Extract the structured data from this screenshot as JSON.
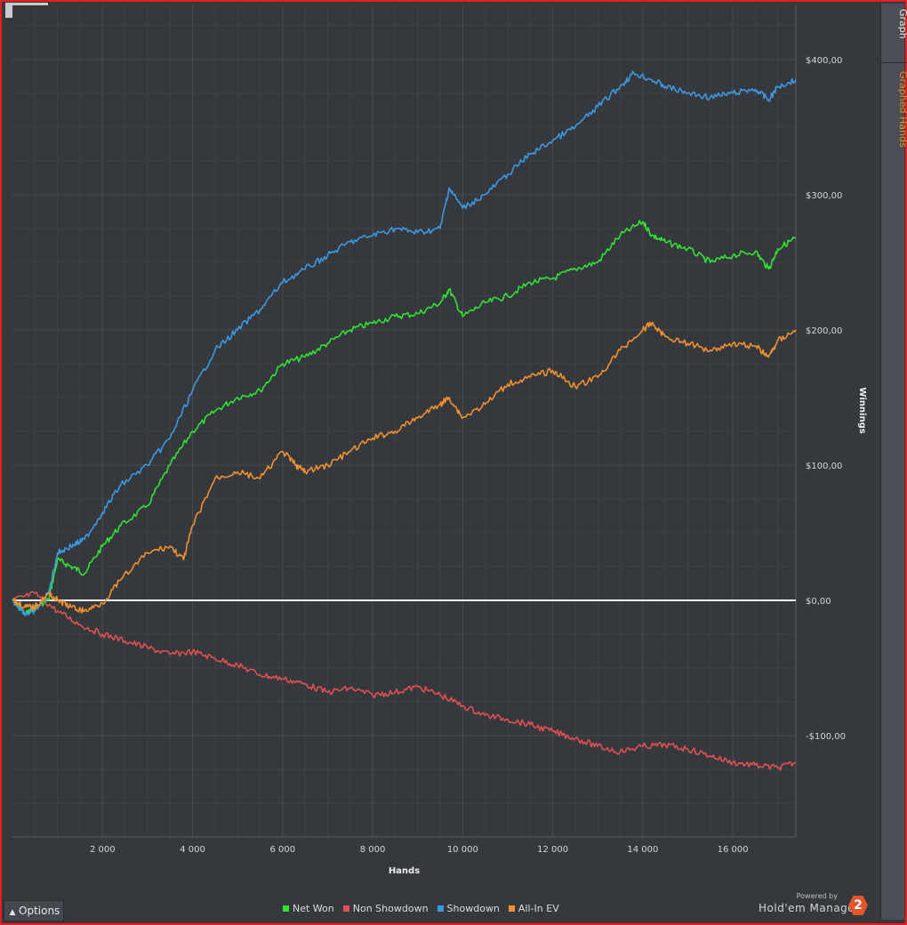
{
  "side_panel": {
    "tab_graph": "Graph",
    "tab_graphed_hands": "Graphed Hands"
  },
  "options_button": {
    "label": "Options"
  },
  "branding": {
    "powered_by": "Powered by",
    "name": "Hold'em Manager",
    "badge": "2"
  },
  "colors": {
    "background": "#35383d",
    "grid": "#4a4d53",
    "net_won": "#33e033",
    "non_showdown": "#e05050",
    "showdown": "#3d98e0",
    "all_in_ev": "#f0902e",
    "accent": "#f08a1c"
  },
  "chart_data": {
    "type": "line",
    "title": "",
    "xlabel": "Hands",
    "ylabel": "Winnings",
    "xlim": [
      0,
      17400
    ],
    "ylim": [
      -175,
      440
    ],
    "x_ticks": [
      2000,
      4000,
      6000,
      8000,
      10000,
      12000,
      14000,
      16000
    ],
    "x_tick_labels": [
      "2 000",
      "4 000",
      "6 000",
      "8 000",
      "10 000",
      "12 000",
      "14 000",
      "16 000"
    ],
    "y_ticks": [
      400,
      300,
      200,
      100,
      0,
      -100
    ],
    "y_tick_labels": [
      "$400,00",
      "$300,00",
      "$200,00",
      "$100,00",
      "$0,00",
      "-$100,00"
    ],
    "grid": true,
    "legend_position": "bottom-center",
    "zero_line": true,
    "series": [
      {
        "name": "Net Won",
        "color": "#33e033",
        "x": [
          0,
          300,
          500,
          800,
          1000,
          1300,
          1600,
          2000,
          2400,
          3000,
          3500,
          4000,
          4500,
          5000,
          5500,
          6000,
          6500,
          7000,
          7500,
          8000,
          8500,
          9000,
          9500,
          9700,
          10000,
          10500,
          11000,
          11500,
          12000,
          12500,
          13000,
          13500,
          14000,
          14200,
          14500,
          15000,
          15500,
          16000,
          16500,
          16800,
          17000,
          17400
        ],
        "y": [
          0,
          -10,
          -5,
          0,
          30,
          25,
          20,
          40,
          55,
          70,
          100,
          125,
          140,
          150,
          155,
          175,
          180,
          190,
          200,
          205,
          210,
          212,
          220,
          230,
          210,
          220,
          225,
          235,
          238,
          245,
          250,
          270,
          280,
          270,
          265,
          260,
          250,
          255,
          258,
          245,
          260,
          268
        ]
      },
      {
        "name": "Non Showdown",
        "color": "#e05050",
        "x": [
          0,
          500,
          1000,
          1500,
          2000,
          2500,
          3000,
          3500,
          4000,
          4500,
          5000,
          5500,
          6000,
          6500,
          7000,
          7500,
          8000,
          8500,
          9000,
          9500,
          10000,
          10500,
          11000,
          11500,
          12000,
          12500,
          13000,
          13500,
          14000,
          14500,
          15000,
          15500,
          16000,
          16500,
          17000,
          17400
        ],
        "y": [
          0,
          5,
          -8,
          -18,
          -25,
          -30,
          -35,
          -40,
          -38,
          -43,
          -48,
          -55,
          -58,
          -62,
          -68,
          -65,
          -70,
          -68,
          -64,
          -70,
          -78,
          -85,
          -88,
          -92,
          -97,
          -102,
          -108,
          -112,
          -108,
          -107,
          -110,
          -115,
          -120,
          -122,
          -124,
          -120
        ]
      },
      {
        "name": "Showdown",
        "color": "#3d98e0",
        "x": [
          0,
          300,
          500,
          800,
          1000,
          1300,
          1600,
          2000,
          2400,
          3000,
          3500,
          4000,
          4500,
          5000,
          5500,
          6000,
          6500,
          7000,
          7500,
          8000,
          8500,
          9000,
          9500,
          9700,
          10000,
          10500,
          11000,
          11500,
          12000,
          12500,
          13000,
          13500,
          13800,
          14200,
          14500,
          15000,
          15500,
          16000,
          16500,
          16800,
          17000,
          17400
        ],
        "y": [
          0,
          -10,
          -8,
          5,
          35,
          40,
          45,
          65,
          85,
          100,
          120,
          155,
          185,
          200,
          215,
          235,
          245,
          255,
          265,
          270,
          275,
          272,
          275,
          305,
          290,
          300,
          315,
          330,
          340,
          350,
          365,
          380,
          390,
          385,
          380,
          375,
          372,
          375,
          378,
          370,
          380,
          385
        ]
      },
      {
        "name": "All-In EV",
        "color": "#f0902e",
        "x": [
          0,
          300,
          500,
          800,
          1000,
          1300,
          1600,
          2000,
          2400,
          3000,
          3500,
          3800,
          4000,
          4500,
          5000,
          5500,
          6000,
          6300,
          6500,
          7000,
          7500,
          8000,
          8500,
          9000,
          9500,
          9700,
          10000,
          10500,
          11000,
          11500,
          12000,
          12500,
          13000,
          13500,
          14000,
          14200,
          14500,
          15000,
          15500,
          16000,
          16500,
          16800,
          17000,
          17400
        ],
        "y": [
          0,
          -5,
          -5,
          5,
          0,
          -5,
          -8,
          -2,
          15,
          35,
          40,
          30,
          55,
          90,
          95,
          90,
          110,
          100,
          95,
          100,
          110,
          120,
          125,
          135,
          145,
          150,
          135,
          145,
          160,
          165,
          170,
          158,
          165,
          185,
          200,
          205,
          195,
          190,
          185,
          190,
          188,
          180,
          192,
          200
        ]
      }
    ]
  }
}
